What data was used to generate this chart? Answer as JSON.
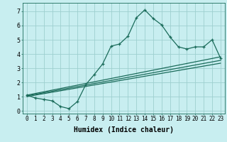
{
  "xlabel": "Humidex (Indice chaleur)",
  "background_color": "#c8eef0",
  "grid_color": "#9dcfcf",
  "line_color": "#1a6b5a",
  "xlim": [
    -0.5,
    23.5
  ],
  "ylim": [
    -0.2,
    7.6
  ],
  "yticks": [
    0,
    1,
    2,
    3,
    4,
    5,
    6,
    7
  ],
  "xticks": [
    0,
    1,
    2,
    3,
    4,
    5,
    6,
    7,
    8,
    9,
    10,
    11,
    12,
    13,
    14,
    15,
    16,
    17,
    18,
    19,
    20,
    21,
    22,
    23
  ],
  "curve1_x": [
    0,
    1,
    2,
    3,
    4,
    5,
    6,
    7,
    8,
    9,
    10,
    11,
    12,
    13,
    14,
    15,
    16,
    17,
    18,
    19,
    20,
    21,
    22,
    23
  ],
  "curve1_y": [
    1.1,
    0.9,
    0.8,
    0.7,
    0.3,
    0.15,
    0.65,
    1.85,
    2.55,
    3.3,
    4.55,
    4.7,
    5.25,
    6.55,
    7.1,
    6.5,
    6.05,
    5.2,
    4.5,
    4.35,
    4.5,
    4.5,
    5.0,
    3.7
  ],
  "trend1_x": [
    0,
    23
  ],
  "trend1_y": [
    1.1,
    3.8
  ],
  "trend2_x": [
    0,
    23
  ],
  "trend2_y": [
    1.05,
    3.55
  ],
  "trend3_x": [
    0,
    23
  ],
  "trend3_y": [
    1.0,
    3.35
  ],
  "xlabel_fontsize": 7,
  "tick_fontsize": 5.5
}
